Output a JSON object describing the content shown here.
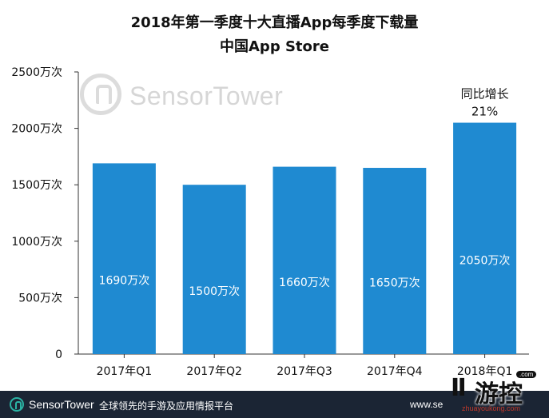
{
  "title": "2018年第一季度十大直播App每季度下载量",
  "subtitle": "中国App Store",
  "watermark": "SensorTower",
  "footer": {
    "brand": "SensorTower",
    "slogan": "全球领先的手游及应用情报平台",
    "url": "www.se"
  },
  "site_badge": {
    "mark": "Ⅱ",
    "word": "游控",
    "url": "zhuayoukong.com",
    "com": ".com"
  },
  "colors": {
    "bar": "#1f8ad1",
    "axis": "#333333",
    "footer_bg": "#1b2534",
    "accent": "#2bb3a4"
  },
  "chart_data": {
    "type": "bar",
    "title": "2018年第一季度十大直播App每季度下载量",
    "subtitle": "中国App Store",
    "categories": [
      "2017年Q1",
      "2017年Q2",
      "2017年Q3",
      "2017年Q4",
      "2018年Q1"
    ],
    "values": [
      1690,
      1500,
      1660,
      1650,
      2050
    ],
    "data_labels": [
      "1690万次",
      "1500万次",
      "1660万次",
      "1650万次",
      "2050万次"
    ],
    "y_ticks": [
      0,
      500,
      1000,
      1500,
      2000,
      2500
    ],
    "y_tick_labels": [
      "0",
      "500万次",
      "1000万次",
      "1500万次",
      "2000万次",
      "2500万次"
    ],
    "ylim": [
      0,
      2500
    ],
    "annotation": {
      "line1": "同比增长",
      "line2": "21%"
    },
    "grid": false
  }
}
